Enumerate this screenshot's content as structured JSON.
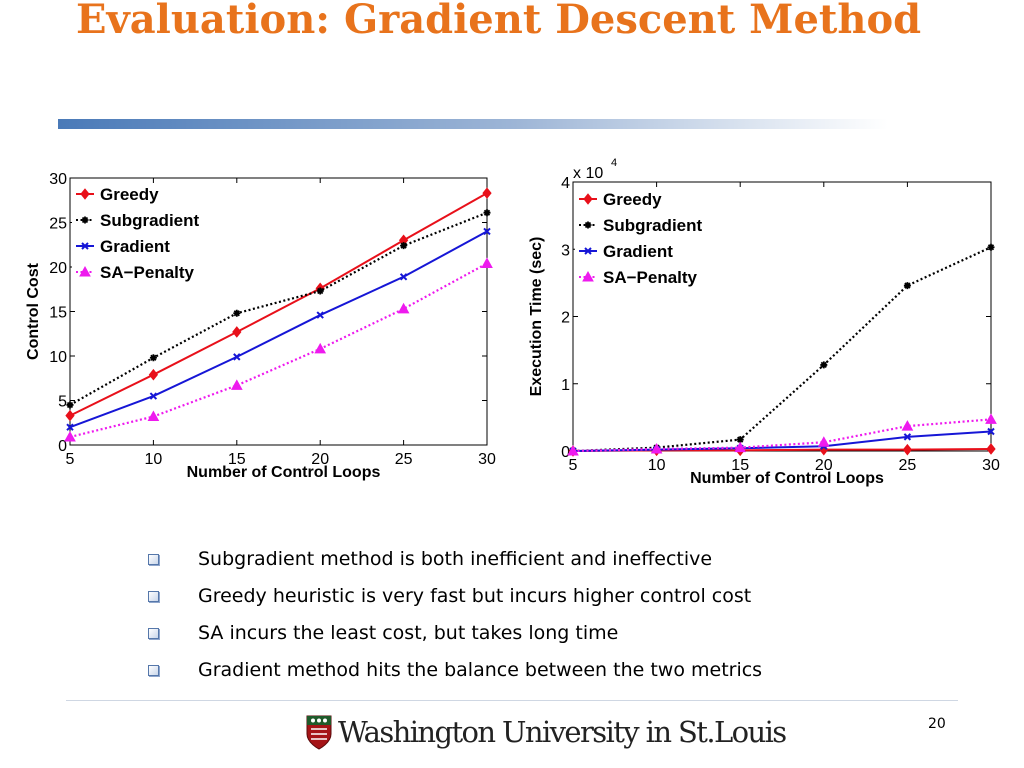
{
  "slide": {
    "title": "Evaluation: Gradient Descent Method",
    "bullets": [
      "Subgradient method is both inefficient and ineffective",
      "Greedy heuristic is very fast but incurs higher control cost",
      "SA incurs the least cost, but takes long time",
      "Gradient method hits the balance between the two metrics"
    ],
    "footer": {
      "logo_text": "Washington University in St.Louis",
      "page_number": "20"
    },
    "colors": {
      "title": "#e8731c",
      "rule_start": "#4a7ab8",
      "bullet_marker": "#5577aa"
    }
  },
  "chart_data": [
    {
      "type": "line",
      "xlabel": "Number of Control Loops",
      "ylabel": "Control Cost",
      "x": [
        5,
        10,
        15,
        20,
        25,
        30
      ],
      "xlim": [
        5,
        30
      ],
      "ylim": [
        0,
        30
      ],
      "xticks": [
        5,
        10,
        15,
        20,
        25,
        30
      ],
      "yticks": [
        0,
        5,
        10,
        15,
        20,
        25,
        30
      ],
      "grid": false,
      "legend_position": "top-left",
      "series": [
        {
          "name": "Greedy",
          "color": "#e8101a",
          "marker": "diamond",
          "dash": "solid",
          "values": [
            3.3,
            7.9,
            12.7,
            17.6,
            23.0,
            28.3
          ]
        },
        {
          "name": "Subgradient",
          "color": "#000000",
          "marker": "star",
          "dash": "dotted",
          "values": [
            4.5,
            9.8,
            14.8,
            17.3,
            22.4,
            26.1
          ]
        },
        {
          "name": "Gradient",
          "color": "#1616d6",
          "marker": "x",
          "dash": "solid",
          "values": [
            2.0,
            5.5,
            9.9,
            14.6,
            18.9,
            24.0
          ]
        },
        {
          "name": "SA−Penalty",
          "color": "#ee1aee",
          "marker": "triangle",
          "dash": "dotted",
          "values": [
            0.9,
            3.2,
            6.7,
            10.8,
            15.3,
            20.4
          ]
        }
      ]
    },
    {
      "type": "line",
      "xlabel": "Number of Control Loops",
      "ylabel": "Execution Time (sec)",
      "y_multiplier_label": "x 10",
      "y_multiplier_exponent": "4",
      "x": [
        5,
        10,
        15,
        20,
        25,
        30
      ],
      "xlim": [
        5,
        30
      ],
      "ylim": [
        0,
        4
      ],
      "xticks": [
        5,
        10,
        15,
        20,
        25,
        30
      ],
      "yticks": [
        0,
        1,
        2,
        3,
        4
      ],
      "grid": false,
      "legend_position": "top-left",
      "series": [
        {
          "name": "Greedy",
          "color": "#e8101a",
          "marker": "diamond",
          "dash": "solid",
          "values": [
            0.0,
            0.01,
            0.01,
            0.02,
            0.02,
            0.03
          ]
        },
        {
          "name": "Subgradient",
          "color": "#000000",
          "marker": "star",
          "dash": "dotted",
          "values": [
            0.0,
            0.05,
            0.17,
            1.28,
            2.46,
            3.03
          ]
        },
        {
          "name": "Gradient",
          "color": "#1616d6",
          "marker": "x",
          "dash": "solid",
          "values": [
            0.0,
            0.02,
            0.04,
            0.07,
            0.21,
            0.29
          ]
        },
        {
          "name": "SA−Penalty",
          "color": "#ee1aee",
          "marker": "triangle",
          "dash": "dotted",
          "values": [
            0.0,
            0.03,
            0.05,
            0.13,
            0.37,
            0.47
          ]
        }
      ]
    }
  ]
}
